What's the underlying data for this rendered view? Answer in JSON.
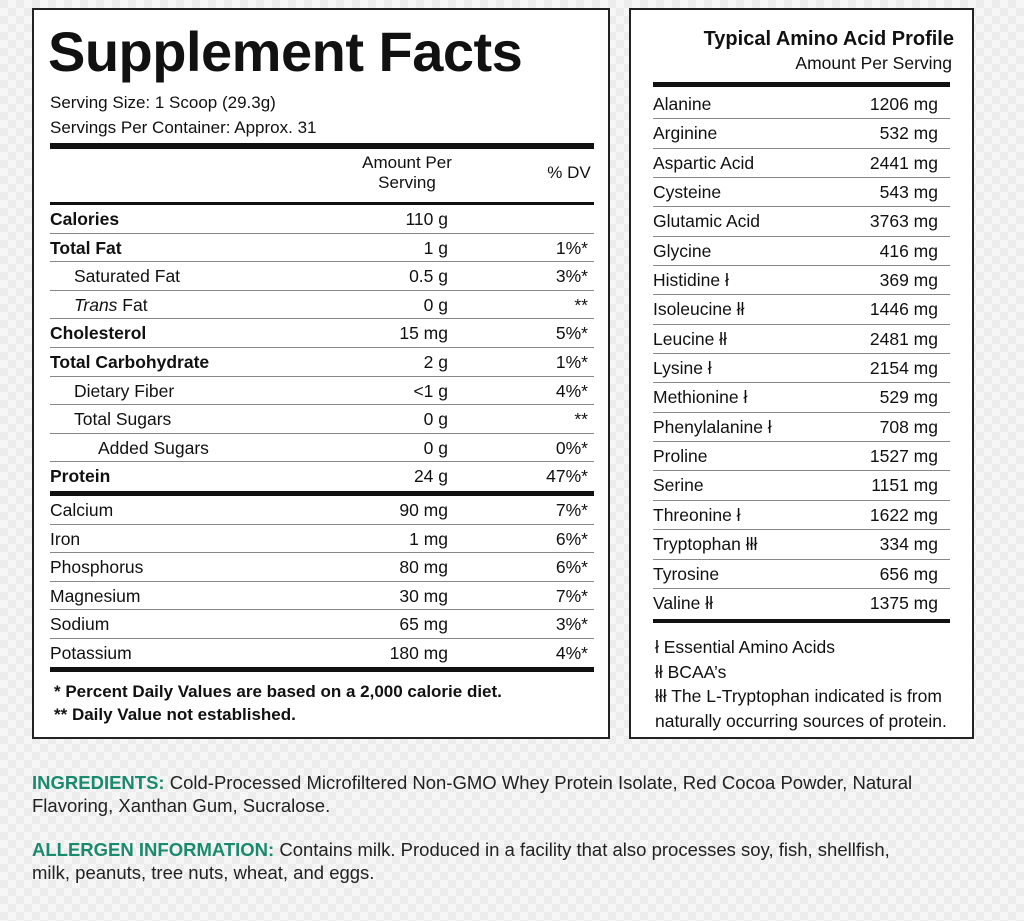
{
  "facts": {
    "title": "Supplement Facts",
    "serving_size": "Serving Size: 1 Scoop (29.3g)",
    "servings_per_container": "Servings Per Container: Approx. 31",
    "col_amount": "Amount Per Serving",
    "col_dv": "% DV",
    "nutrients": [
      {
        "name": "Calories",
        "amount": "110 g",
        "dv": "",
        "bold": true,
        "indent": 0
      },
      {
        "name": "Total Fat",
        "amount": "1 g",
        "dv": "1%*",
        "bold": true,
        "indent": 0
      },
      {
        "name": "Saturated Fat",
        "amount": "0.5 g",
        "dv": "3%*",
        "bold": false,
        "indent": 1
      },
      {
        "name": "Trans Fat",
        "amount": "0 g",
        "dv": "**",
        "bold": false,
        "indent": 1
      },
      {
        "name": "Cholesterol",
        "amount": "15 mg",
        "dv": "5%*",
        "bold": true,
        "indent": 0
      },
      {
        "name": "Total Carbohydrate",
        "amount": "2 g",
        "dv": "1%*",
        "bold": true,
        "indent": 0
      },
      {
        "name": "Dietary Fiber",
        "amount": "<1 g",
        "dv": "4%*",
        "bold": false,
        "indent": 1
      },
      {
        "name": "Total Sugars",
        "amount": "0 g",
        "dv": "**",
        "bold": false,
        "indent": 1
      },
      {
        "name": "Added Sugars",
        "amount": "0 g",
        "dv": "0%*",
        "bold": false,
        "indent": 2
      },
      {
        "name": "Protein",
        "amount": "24 g",
        "dv": "47%*",
        "bold": true,
        "indent": 0
      }
    ],
    "minerals": [
      {
        "name": "Calcium",
        "amount": "90 mg",
        "dv": "7%*"
      },
      {
        "name": "Iron",
        "amount": "1 mg",
        "dv": "6%*"
      },
      {
        "name": "Phosphorus",
        "amount": "80 mg",
        "dv": "6%*"
      },
      {
        "name": "Magnesium",
        "amount": "30 mg",
        "dv": "7%*"
      },
      {
        "name": "Sodium",
        "amount": "65 mg",
        "dv": "3%*"
      },
      {
        "name": "Potassium",
        "amount": "180 mg",
        "dv": "4%*"
      }
    ],
    "footnote1": "* Percent Daily Values are based on a 2,000 calorie diet.",
    "footnote2": "** Daily Value not established."
  },
  "amino": {
    "title": "Typical Amino Acid Profile",
    "subtitle": "Amount Per Serving",
    "items": [
      {
        "name": "Alanine",
        "amount": "1206 mg"
      },
      {
        "name": "Arginine",
        "amount": "532 mg"
      },
      {
        "name": "Aspartic Acid",
        "amount": "2441 mg"
      },
      {
        "name": "Cysteine",
        "amount": "543 mg"
      },
      {
        "name": "Glutamic Acid",
        "amount": "3763 mg"
      },
      {
        "name": "Glycine",
        "amount": "416 mg"
      },
      {
        "name": "Histidine ł",
        "amount": "369 mg"
      },
      {
        "name": "Isoleucine łł",
        "amount": "1446 mg"
      },
      {
        "name": "Leucine łł",
        "amount": "2481 mg"
      },
      {
        "name": "Lysine ł",
        "amount": "2154 mg"
      },
      {
        "name": "Methionine ł",
        "amount": "529 mg"
      },
      {
        "name": "Phenylalanine ł",
        "amount": "708 mg"
      },
      {
        "name": "Proline",
        "amount": "1527 mg"
      },
      {
        "name": "Serine",
        "amount": "1151 mg"
      },
      {
        "name": "Threonine ł",
        "amount": "1622 mg"
      },
      {
        "name": "Tryptophan łłł",
        "amount": "334 mg"
      },
      {
        "name": "Tyrosine",
        "amount": "656 mg"
      },
      {
        "name": "Valine łł",
        "amount": "1375 mg"
      }
    ],
    "notes": [
      "ł Essential Amino Acids",
      "łł BCAA’s",
      "łłł The L-Tryptophan indicated is from",
      "naturally occurring sources of protein."
    ]
  },
  "ingredients": {
    "label": "INGREDIENTS:",
    "text": " Cold-Processed Microfiltered Non-GMO Whey Protein Isolate, Red Cocoa Powder, Natural Flavoring, Xanthan Gum, Sucralose."
  },
  "allergen": {
    "label": "ALLERGEN INFORMATION:",
    "text": " Contains milk. Produced in a facility that also processes soy, fish, shellfish, milk, peanuts, tree nuts, wheat, and eggs."
  },
  "colors": {
    "label_green": "#1a8a6e"
  }
}
